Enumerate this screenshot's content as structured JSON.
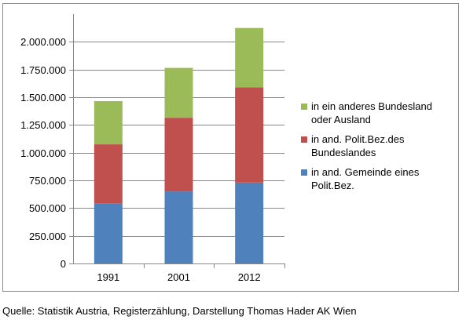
{
  "chart_data": {
    "type": "bar",
    "stacked": true,
    "categories": [
      "1991",
      "2001",
      "2012"
    ],
    "series": [
      {
        "name": "in and. Gemeinde eines Polit.Bez.",
        "name_lines": [
          "in and. Gemeinde eines",
          "Polit.Bez."
        ],
        "color": "#4f81bd",
        "values": [
          540000,
          650000,
          730000
        ]
      },
      {
        "name": "in and. Polit.Bez.des Bundeslandes",
        "name_lines": [
          "in and. Polit.Bez.des",
          "Bundeslandes"
        ],
        "color": "#c0504d",
        "values": [
          535000,
          665000,
          860000
        ]
      },
      {
        "name": "in ein anderes Bundesland oder Ausland",
        "name_lines": [
          "in ein anderes Bundesland",
          "oder Ausland"
        ],
        "color": "#9bbb59",
        "values": [
          390000,
          450000,
          535000
        ]
      }
    ],
    "ylim": [
      0,
      2250000
    ],
    "ytick_values": [
      0,
      250000,
      500000,
      750000,
      1000000,
      1250000,
      1500000,
      1750000,
      2000000
    ],
    "ytick_labels": [
      "0",
      "250.000",
      "500.000",
      "750.000",
      "1.000.000",
      "1.250.000",
      "1.500.000",
      "1.750.000",
      "2.000.000"
    ],
    "grid": true,
    "legend_position": "right",
    "legend_order": [
      2,
      1,
      0
    ],
    "title": "",
    "xlabel": "",
    "ylabel": ""
  },
  "source_note": "Quelle: Statistik Austria, Registerzählung, Darstellung Thomas Hader AK Wien"
}
